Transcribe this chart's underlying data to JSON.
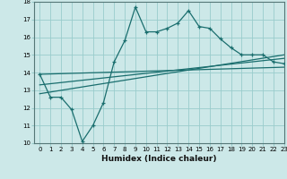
{
  "title": "",
  "xlabel": "Humidex (Indice chaleur)",
  "xlim": [
    -0.5,
    23
  ],
  "ylim": [
    10,
    18
  ],
  "background_color": "#cce8e8",
  "plot_bg_color": "#cce8e8",
  "grid_color": "#99cccc",
  "line_color": "#1a6e6e",
  "xticks": [
    0,
    1,
    2,
    3,
    4,
    5,
    6,
    7,
    8,
    9,
    10,
    11,
    12,
    13,
    14,
    15,
    16,
    17,
    18,
    19,
    20,
    21,
    22,
    23
  ],
  "yticks": [
    10,
    11,
    12,
    13,
    14,
    15,
    16,
    17,
    18
  ],
  "line1_x": [
    0,
    1,
    2,
    3,
    4,
    5,
    6,
    7,
    8,
    9,
    10,
    11,
    12,
    13,
    14,
    15,
    16,
    17,
    18,
    19,
    20,
    21,
    22,
    23
  ],
  "line1_y": [
    13.9,
    12.6,
    12.6,
    11.9,
    10.1,
    11.0,
    12.3,
    14.6,
    15.8,
    17.7,
    16.3,
    16.3,
    16.5,
    16.8,
    17.5,
    16.6,
    16.5,
    15.9,
    15.4,
    15.0,
    15.0,
    15.0,
    14.6,
    14.5
  ],
  "line2_x": [
    0,
    23
  ],
  "line2_y": [
    12.8,
    15.0
  ],
  "line3_x": [
    0,
    23
  ],
  "line3_y": [
    13.3,
    14.8
  ],
  "line4_x": [
    0,
    23
  ],
  "line4_y": [
    13.9,
    14.3
  ]
}
